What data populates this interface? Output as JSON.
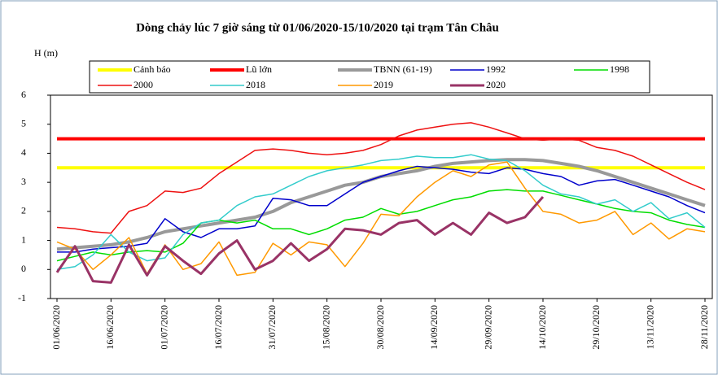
{
  "chart_data": {
    "type": "line",
    "title": "Dòng chảy lúc 7 giờ sáng từ 01/06/2020-15/10/2020 tại trạm Tân Châu",
    "y_label": "H (m)",
    "categories": [
      "01/06/2020",
      null,
      null,
      "16/06/2020",
      null,
      null,
      "01/07/2020",
      null,
      null,
      "16/07/2020",
      null,
      null,
      "31/07/2020",
      null,
      null,
      "15/08/2020",
      null,
      null,
      "30/08/2020",
      null,
      null,
      "14/09/2020",
      null,
      null,
      "29/09/2020",
      null,
      null,
      "14/10/2020",
      null,
      null,
      "29/10/2020",
      null,
      null,
      "13/11/2020",
      null,
      null,
      "28/11/2020"
    ],
    "ylim": [
      -1,
      6
    ],
    "yticks": [
      -1,
      0,
      1,
      2,
      3,
      4,
      5,
      6
    ],
    "grid": false,
    "series": [
      {
        "name": "Cảnh báo",
        "color": "#ffff00",
        "width": 4,
        "values": [
          3.5,
          3.5,
          3.5,
          3.5,
          3.5,
          3.5,
          3.5,
          3.5,
          3.5,
          3.5,
          3.5,
          3.5,
          3.5,
          3.5,
          3.5,
          3.5,
          3.5,
          3.5,
          3.5,
          3.5,
          3.5,
          3.5,
          3.5,
          3.5,
          3.5,
          3.5,
          3.5,
          3.5,
          3.5,
          3.5,
          3.5,
          3.5,
          3.5,
          3.5,
          3.5,
          3.5,
          3.5
        ]
      },
      {
        "name": "Lũ lớn",
        "color": "#ff0000",
        "width": 4,
        "values": [
          4.5,
          4.5,
          4.5,
          4.5,
          4.5,
          4.5,
          4.5,
          4.5,
          4.5,
          4.5,
          4.5,
          4.5,
          4.5,
          4.5,
          4.5,
          4.5,
          4.5,
          4.5,
          4.5,
          4.5,
          4.5,
          4.5,
          4.5,
          4.5,
          4.5,
          4.5,
          4.5,
          4.5,
          4.5,
          4.5,
          4.5,
          4.5,
          4.5,
          4.5,
          4.5,
          4.5,
          4.5
        ]
      },
      {
        "name": "TBNN (61-19)",
        "color": "#999999",
        "width": 4,
        "values": [
          0.7,
          0.75,
          0.8,
          0.85,
          0.95,
          1.1,
          1.3,
          1.4,
          1.5,
          1.6,
          1.7,
          1.8,
          2.0,
          2.3,
          2.5,
          2.7,
          2.9,
          3.0,
          3.2,
          3.3,
          3.4,
          3.55,
          3.65,
          3.7,
          3.75,
          3.78,
          3.78,
          3.75,
          3.65,
          3.55,
          3.4,
          3.2,
          3.0,
          2.8,
          2.6,
          2.4,
          2.2
        ]
      },
      {
        "name": "1992",
        "color": "#0000cc",
        "width": 1.5,
        "values": [
          0.6,
          0.6,
          0.7,
          0.75,
          0.8,
          0.9,
          1.75,
          1.3,
          1.1,
          1.4,
          1.4,
          1.5,
          2.45,
          2.4,
          2.2,
          2.2,
          2.6,
          3.0,
          3.2,
          3.4,
          3.55,
          3.5,
          3.45,
          3.35,
          3.3,
          3.5,
          3.45,
          3.3,
          3.2,
          2.9,
          3.05,
          3.1,
          2.9,
          2.7,
          2.5,
          2.2,
          1.95
        ]
      },
      {
        "name": "1998",
        "color": "#00dd00",
        "width": 1.5,
        "values": [
          0.3,
          0.45,
          0.6,
          0.5,
          0.6,
          0.65,
          0.6,
          0.9,
          1.6,
          1.7,
          1.6,
          1.7,
          1.4,
          1.4,
          1.2,
          1.4,
          1.7,
          1.8,
          2.1,
          1.9,
          2.0,
          2.2,
          2.4,
          2.5,
          2.7,
          2.75,
          2.7,
          2.7,
          2.55,
          2.4,
          2.25,
          2.1,
          2.0,
          1.95,
          1.7,
          1.55,
          1.45
        ]
      },
      {
        "name": "2000",
        "color": "#ee1111",
        "width": 1.5,
        "values": [
          1.45,
          1.4,
          1.3,
          1.25,
          2.0,
          2.2,
          2.7,
          2.65,
          2.8,
          3.3,
          3.7,
          4.1,
          4.15,
          4.1,
          4.0,
          3.95,
          4.0,
          4.1,
          4.3,
          4.6,
          4.8,
          4.9,
          5.0,
          5.05,
          4.9,
          4.7,
          4.5,
          4.45,
          4.5,
          4.45,
          4.2,
          4.1,
          3.9,
          3.6,
          3.3,
          3.0,
          2.75
        ]
      },
      {
        "name": "2018",
        "color": "#33cccc",
        "width": 1.5,
        "values": [
          0.0,
          0.1,
          0.5,
          1.2,
          0.6,
          0.3,
          0.4,
          1.2,
          1.6,
          1.7,
          2.2,
          2.5,
          2.6,
          2.9,
          3.2,
          3.4,
          3.5,
          3.6,
          3.75,
          3.8,
          3.9,
          3.85,
          3.85,
          3.95,
          3.8,
          3.75,
          3.4,
          2.9,
          2.6,
          2.5,
          2.25,
          2.4,
          2.0,
          2.3,
          1.75,
          1.95,
          1.45
        ]
      },
      {
        "name": "2019",
        "color": "#ff9900",
        "width": 1.5,
        "values": [
          0.95,
          0.7,
          0.0,
          0.5,
          1.1,
          -0.15,
          0.85,
          0.0,
          0.2,
          0.95,
          -0.2,
          -0.1,
          0.9,
          0.5,
          0.95,
          0.85,
          0.1,
          0.9,
          1.9,
          1.85,
          2.5,
          3.0,
          3.4,
          3.2,
          3.6,
          3.7,
          2.8,
          2.0,
          1.9,
          1.6,
          1.7,
          2.0,
          1.2,
          1.6,
          1.05,
          1.4,
          1.3
        ]
      },
      {
        "name": "2020",
        "color": "#993366",
        "width": 3,
        "values": [
          -0.1,
          0.8,
          -0.4,
          -0.45,
          0.85,
          -0.2,
          0.8,
          0.3,
          -0.15,
          0.55,
          1.0,
          0.0,
          0.3,
          0.9,
          0.3,
          0.7,
          1.4,
          1.35,
          1.2,
          1.6,
          1.7,
          1.2,
          1.6,
          1.2,
          1.95,
          1.6,
          1.8,
          2.5,
          null,
          null,
          null,
          null,
          null,
          null,
          null,
          null,
          null
        ]
      }
    ]
  }
}
